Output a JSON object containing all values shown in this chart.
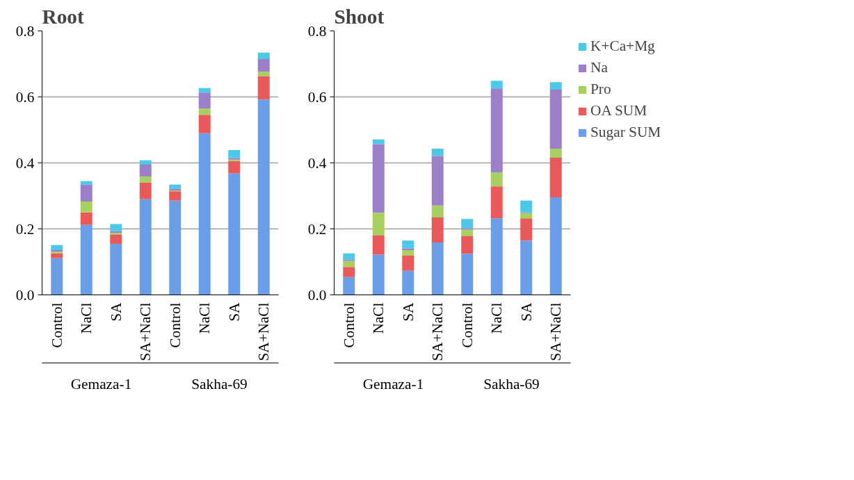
{
  "chart_data": [
    {
      "type": "bar",
      "title": "Root",
      "stacked": true,
      "categories": [
        "Control",
        "NaCl",
        "SA",
        "SA+NaCl",
        "Control",
        "NaCl",
        "SA",
        "SA+NaCl"
      ],
      "annotations": [
        "Gemaza-1",
        "Sakha-69"
      ],
      "series": [
        {
          "color": "#6a9ee8",
          "values": [
            0.111,
            0.212,
            0.155,
            0.29,
            0.286,
            0.49,
            0.368,
            0.592
          ]
        },
        {
          "color": "#e85a5a",
          "values": [
            0.015,
            0.038,
            0.027,
            0.051,
            0.028,
            0.056,
            0.038,
            0.071
          ]
        },
        {
          "color": "#a8d060",
          "values": [
            0.005,
            0.033,
            0.006,
            0.018,
            0.003,
            0.019,
            0.004,
            0.014
          ]
        },
        {
          "color": "#9b7fc8",
          "values": [
            0.005,
            0.051,
            0.005,
            0.036,
            0.005,
            0.048,
            0.005,
            0.038
          ]
        },
        {
          "color": "#4cc8e8",
          "values": [
            0.015,
            0.011,
            0.022,
            0.013,
            0.012,
            0.014,
            0.024,
            0.019
          ]
        }
      ],
      "ylim": [
        0,
        0.8
      ],
      "yticks": [
        {
          "value": 0,
          "label": "0.0"
        },
        0.2,
        0.4,
        0.6,
        0.8
      ],
      "grid": "y"
    },
    {
      "type": "bar",
      "title": "Shoot",
      "stacked": true,
      "categories": [
        "Control",
        "NaCl",
        "SA",
        "SA+NaCl",
        "Control",
        "NaCl",
        "SA",
        "SA+NaCl"
      ],
      "annotations": [
        "Gemaza-1",
        "Sakha-69"
      ],
      "series": [
        {
          "name": "Sugar SUM",
          "color": "#6a9ee8",
          "values": [
            0.054,
            0.122,
            0.073,
            0.159,
            0.125,
            0.232,
            0.164,
            0.296
          ]
        },
        {
          "name": "OA SUM",
          "color": "#e85a5a",
          "values": [
            0.031,
            0.058,
            0.047,
            0.076,
            0.053,
            0.097,
            0.068,
            0.12
          ]
        },
        {
          "name": "Pro",
          "color": "#a8d060",
          "values": [
            0.018,
            0.069,
            0.016,
            0.036,
            0.02,
            0.042,
            0.016,
            0.027
          ]
        },
        {
          "name": "Na",
          "color": "#9b7fc8",
          "values": [
            0.004,
            0.208,
            0.005,
            0.15,
            0.004,
            0.255,
            0.002,
            0.179
          ]
        },
        {
          "name": "K+Ca+Mg",
          "color": "#4cc8e8",
          "values": [
            0.019,
            0.014,
            0.024,
            0.022,
            0.028,
            0.023,
            0.036,
            0.023
          ]
        }
      ],
      "ylim": [
        0,
        0.8
      ],
      "yticks": [
        {
          "value": 0,
          "label": "0.0"
        },
        0.2,
        0.4,
        0.6,
        0.8
      ],
      "grid": "y",
      "legend": "right"
    }
  ]
}
